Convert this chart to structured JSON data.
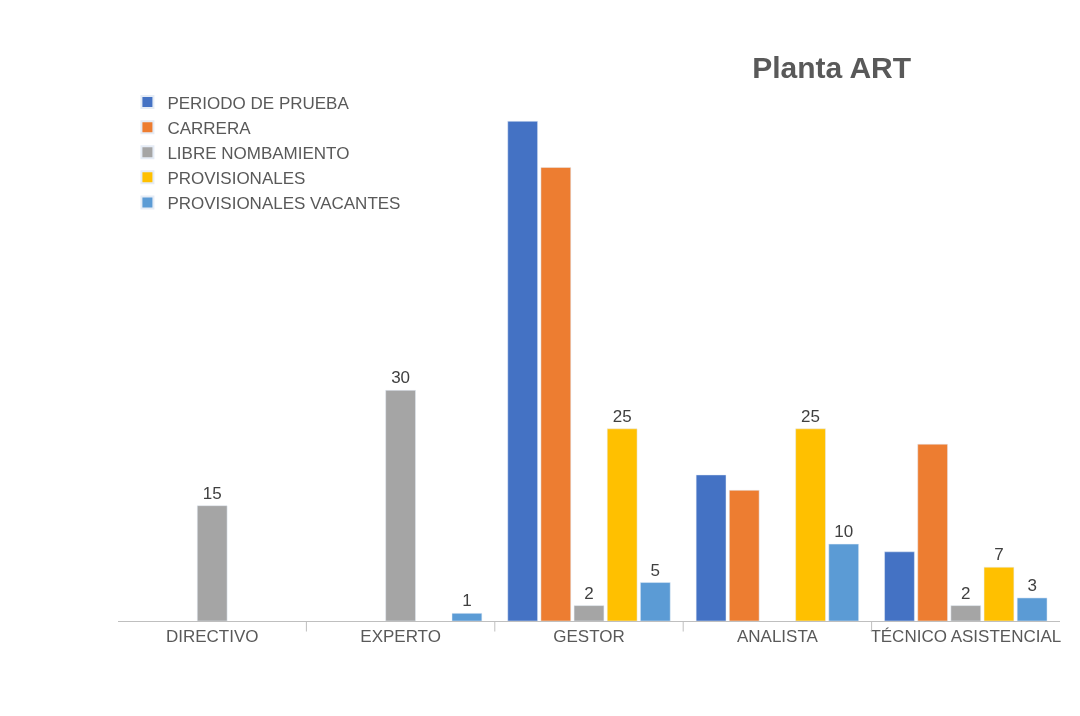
{
  "chart_data": {
    "type": "bar",
    "title": "Planta ART",
    "categories": [
      "DIRECTIVO",
      "EXPERTO",
      "GESTOR",
      "ANALISTA",
      "TÉCNICO ASISTENCIAL"
    ],
    "series": [
      {
        "name": "PERIODO DE PRUEBA",
        "color": "#4472c4",
        "values": [
          null,
          null,
          65,
          19,
          9
        ],
        "value_labels": [
          null,
          null,
          null,
          null,
          null
        ]
      },
      {
        "name": "CARRERA",
        "color": "#ed7d31",
        "values": [
          null,
          null,
          59,
          17,
          23
        ],
        "value_labels": [
          null,
          null,
          null,
          null,
          null
        ]
      },
      {
        "name": "LIBRE NOMBAMIENTO",
        "color": "#a5a5a5",
        "values": [
          15,
          30,
          2,
          null,
          2
        ],
        "value_labels": [
          "15",
          "30",
          "2",
          null,
          "2"
        ]
      },
      {
        "name": "PROVISIONALES",
        "color": "#ffc000",
        "values": [
          null,
          null,
          25,
          25,
          7
        ],
        "value_labels": [
          null,
          null,
          "25",
          "25",
          "7"
        ]
      },
      {
        "name": "PROVISIONALES VACANTES",
        "color": "#5b9bd5",
        "values": [
          null,
          1,
          5,
          10,
          3
        ],
        "value_labels": [
          null,
          "1",
          "5",
          "10",
          "3"
        ]
      }
    ],
    "legend": "top left"
  }
}
